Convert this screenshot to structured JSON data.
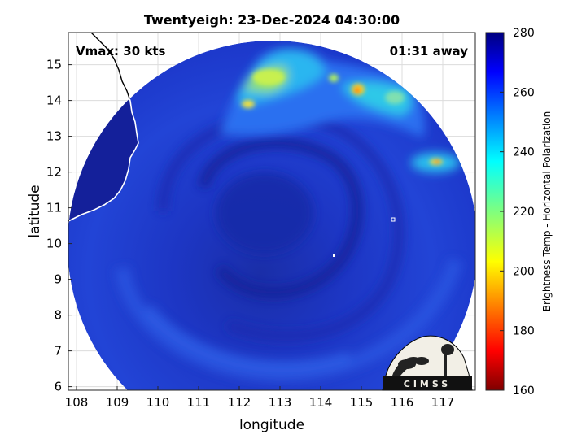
{
  "figure": {
    "title": "Twentyeigh: 23-Dec-2024 04:30:00",
    "vmax_label": "Vmax: 30 kts",
    "time_label": "01:31 away",
    "xlabel": "longitude",
    "ylabel": "latitude",
    "colorbar_label": "Brightness Temp - Horizontal Polarization",
    "logo_text": "CIMSS"
  },
  "map_data": {
    "type": "microwave-brightness-temperature-map",
    "x_ticks": [
      "108",
      "109",
      "110",
      "111",
      "112",
      "113",
      "114",
      "115",
      "116",
      "117"
    ],
    "y_ticks": [
      "6",
      "7",
      "8",
      "9",
      "10",
      "11",
      "12",
      "13",
      "14",
      "15"
    ],
    "lon_range": [
      107.8,
      117.8
    ],
    "lat_range": [
      5.9,
      15.9
    ],
    "swath_center": [
      112.65,
      10.35
    ],
    "swath_radius_deg": 5.7,
    "storm_center": [
      112.6,
      10.9
    ],
    "colorbar": {
      "min": 160,
      "max": 280,
      "ticks": [
        "280",
        "260",
        "240",
        "220",
        "200",
        "180",
        "160"
      ],
      "colormap": "jet"
    },
    "colors": {
      "background_scene": "#1f3fd0",
      "deep_blue": "#14209a",
      "coast": "#ffffff"
    }
  }
}
